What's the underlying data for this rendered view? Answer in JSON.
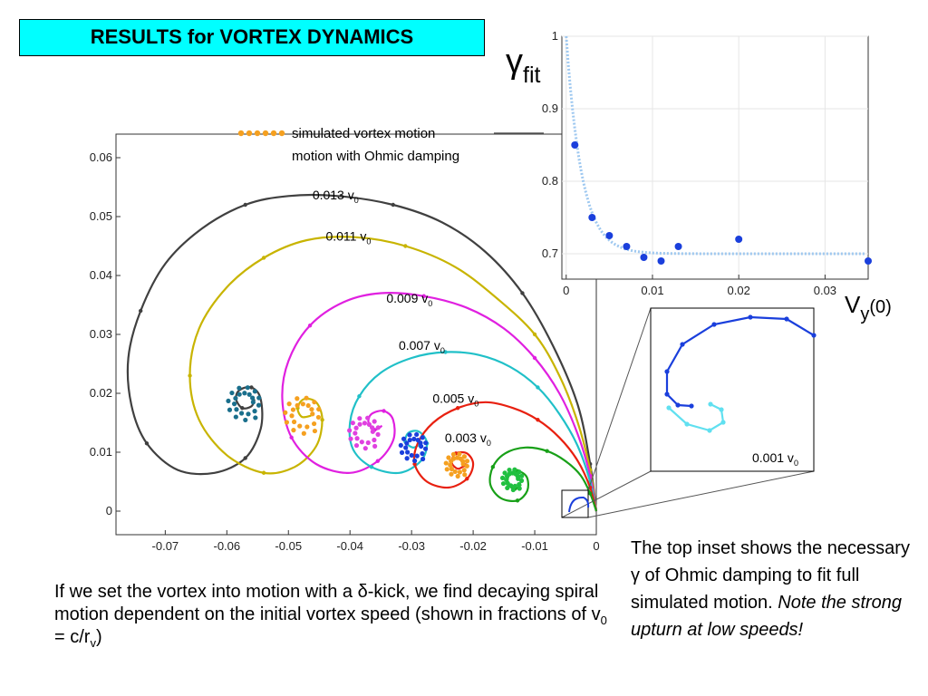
{
  "slide": {
    "title": "RESULTS for VORTEX DYNAMICS",
    "left_text": {
      "part1": "If we set the vortex into motion with a  ",
      "delta": "δ",
      "part2": "-kick, we find decaying spiral motion dependent on the initial vortex speed (shown in fractions of v",
      "sub0": "0",
      "part3": " = c/r",
      "subv": "v",
      "part4": ")"
    },
    "right_text": {
      "part1": "The top inset shows the necessary ",
      "gamma": "γ",
      "part2": " of Ohmic damping to fit full simulated motion. ",
      "italic": "Note the strong upturn at low speeds!"
    }
  },
  "chart_data": [
    {
      "type": "line",
      "title": "",
      "legend": {
        "placement": "top",
        "entries": [
          "simulated vortex motion",
          "motion with Ohmic damping"
        ]
      },
      "xlabel": "",
      "ylabel": "",
      "xlim": [
        -0.078,
        0
      ],
      "ylim": [
        -0.004,
        0.064
      ],
      "x_ticks": [
        "-0.07",
        "-0.06",
        "-0.05",
        "-0.04",
        "-0.03",
        "-0.02",
        "-0.01",
        "0"
      ],
      "x_tick_values": [
        -0.07,
        -0.06,
        -0.05,
        -0.04,
        -0.03,
        -0.02,
        -0.01,
        0
      ],
      "y_ticks": [
        "0",
        "0.01",
        "0.02",
        "0.03",
        "0.04",
        "0.05",
        "0.06"
      ],
      "y_tick_values": [
        0,
        0.01,
        0.02,
        0.03,
        0.04,
        0.05,
        0.06
      ],
      "series": [
        {
          "name": "0.013 v0",
          "label": "0.013 v",
          "sub": "0",
          "color": "#404040",
          "points": [
            [
              0,
              0
            ],
            [
              -0.001,
              0.008
            ],
            [
              -0.003,
              0.018
            ],
            [
              -0.007,
              0.028
            ],
            [
              -0.012,
              0.037
            ],
            [
              -0.018,
              0.044
            ],
            [
              -0.025,
              0.049
            ],
            [
              -0.033,
              0.052
            ],
            [
              -0.042,
              0.0535
            ],
            [
              -0.05,
              0.0535
            ],
            [
              -0.057,
              0.052
            ],
            [
              -0.064,
              0.048
            ],
            [
              -0.07,
              0.042
            ],
            [
              -0.074,
              0.034
            ],
            [
              -0.076,
              0.026
            ],
            [
              -0.0755,
              0.018
            ],
            [
              -0.073,
              0.0115
            ],
            [
              -0.068,
              0.007
            ],
            [
              -0.062,
              0.0065
            ],
            [
              -0.057,
              0.009
            ],
            [
              -0.0545,
              0.014
            ],
            [
              -0.0545,
              0.019
            ],
            [
              -0.056,
              0.021
            ],
            [
              -0.058,
              0.0205
            ],
            [
              -0.0585,
              0.019
            ],
            [
              -0.0575,
              0.0175
            ],
            [
              -0.056,
              0.0178
            ],
            [
              -0.0555,
              0.019
            ]
          ]
        },
        {
          "name": "0.011 v0",
          "label": "0.011 v",
          "sub": "0",
          "color": "#c8b400",
          "points": [
            [
              0,
              0
            ],
            [
              -0.001,
              0.007
            ],
            [
              -0.003,
              0.015
            ],
            [
              -0.006,
              0.023
            ],
            [
              -0.01,
              0.03
            ],
            [
              -0.016,
              0.036
            ],
            [
              -0.023,
              0.0415
            ],
            [
              -0.031,
              0.045
            ],
            [
              -0.039,
              0.0465
            ],
            [
              -0.047,
              0.046
            ],
            [
              -0.054,
              0.043
            ],
            [
              -0.06,
              0.038
            ],
            [
              -0.0645,
              0.031
            ],
            [
              -0.066,
              0.023
            ],
            [
              -0.0645,
              0.0155
            ],
            [
              -0.06,
              0.0095
            ],
            [
              -0.054,
              0.0065
            ],
            [
              -0.049,
              0.0075
            ],
            [
              -0.0455,
              0.011
            ],
            [
              -0.0445,
              0.0155
            ],
            [
              -0.0455,
              0.0185
            ],
            [
              -0.0475,
              0.019
            ],
            [
              -0.0485,
              0.0175
            ],
            [
              -0.0478,
              0.016
            ],
            [
              -0.0463,
              0.0162
            ]
          ]
        },
        {
          "name": "0.009 v0",
          "label": "0.009 v",
          "sub": "0",
          "color": "#e020e0",
          "points": [
            [
              0,
              0
            ],
            [
              -0.001,
              0.006
            ],
            [
              -0.003,
              0.013
            ],
            [
              -0.006,
              0.02
            ],
            [
              -0.01,
              0.026
            ],
            [
              -0.015,
              0.031
            ],
            [
              -0.021,
              0.0345
            ],
            [
              -0.028,
              0.0365
            ],
            [
              -0.035,
              0.037
            ],
            [
              -0.041,
              0.0355
            ],
            [
              -0.0465,
              0.0315
            ],
            [
              -0.05,
              0.0255
            ],
            [
              -0.051,
              0.019
            ],
            [
              -0.0495,
              0.0125
            ],
            [
              -0.0455,
              0.008
            ],
            [
              -0.04,
              0.0065
            ],
            [
              -0.0355,
              0.0085
            ],
            [
              -0.033,
              0.012
            ],
            [
              -0.033,
              0.0155
            ],
            [
              -0.0345,
              0.017
            ],
            [
              -0.0365,
              0.0165
            ],
            [
              -0.037,
              0.015
            ],
            [
              -0.036,
              0.0138
            ],
            [
              -0.0348,
              0.0145
            ]
          ]
        },
        {
          "name": "0.007 v0",
          "label": "0.007 v",
          "sub": "0",
          "color": "#20c0c8",
          "points": [
            [
              0,
              0
            ],
            [
              -0.001,
              0.005
            ],
            [
              -0.003,
              0.011
            ],
            [
              -0.006,
              0.0165
            ],
            [
              -0.0095,
              0.021
            ],
            [
              -0.014,
              0.0245
            ],
            [
              -0.019,
              0.0265
            ],
            [
              -0.0245,
              0.027
            ],
            [
              -0.03,
              0.026
            ],
            [
              -0.035,
              0.0235
            ],
            [
              -0.0385,
              0.0195
            ],
            [
              -0.04,
              0.015
            ],
            [
              -0.0395,
              0.0105
            ],
            [
              -0.0365,
              0.0075
            ],
            [
              -0.032,
              0.0065
            ],
            [
              -0.0285,
              0.0085
            ],
            [
              -0.0275,
              0.0115
            ],
            [
              -0.0288,
              0.0135
            ],
            [
              -0.0305,
              0.0133
            ],
            [
              -0.031,
              0.0118
            ],
            [
              -0.0298,
              0.0108
            ],
            [
              -0.0287,
              0.0113
            ]
          ]
        },
        {
          "name": "0.005 v0",
          "label": "0.005 v",
          "sub": "0",
          "color": "#e82010",
          "points": [
            [
              0,
              0
            ],
            [
              -0.001,
              0.004
            ],
            [
              -0.003,
              0.0085
            ],
            [
              -0.006,
              0.0125
            ],
            [
              -0.0095,
              0.0155
            ],
            [
              -0.0135,
              0.0175
            ],
            [
              -0.018,
              0.0185
            ],
            [
              -0.0225,
              0.0175
            ],
            [
              -0.0265,
              0.015
            ],
            [
              -0.029,
              0.0115
            ],
            [
              -0.0295,
              0.008
            ],
            [
              -0.0275,
              0.005
            ],
            [
              -0.024,
              0.004
            ],
            [
              -0.021,
              0.0055
            ],
            [
              -0.02,
              0.008
            ],
            [
              -0.021,
              0.0098
            ],
            [
              -0.0228,
              0.0098
            ],
            [
              -0.0235,
              0.0083
            ],
            [
              -0.0225,
              0.0072
            ],
            [
              -0.0213,
              0.0078
            ]
          ]
        },
        {
          "name": "0.003 v0",
          "label": "0.003 v",
          "sub": "0",
          "color": "#18a018",
          "points": [
            [
              0,
              0
            ],
            [
              -0.001,
              0.003
            ],
            [
              -0.0025,
              0.006
            ],
            [
              -0.005,
              0.0085
            ],
            [
              -0.008,
              0.0102
            ],
            [
              -0.0115,
              0.0108
            ],
            [
              -0.0148,
              0.0098
            ],
            [
              -0.0168,
              0.0075
            ],
            [
              -0.0172,
              0.0045
            ],
            [
              -0.0155,
              0.0022
            ],
            [
              -0.0128,
              0.0018
            ],
            [
              -0.0112,
              0.0035
            ],
            [
              -0.0113,
              0.0058
            ],
            [
              -0.0128,
              0.0068
            ],
            [
              -0.0142,
              0.006
            ],
            [
              -0.0143,
              0.0045
            ],
            [
              -0.0132,
              0.0038
            ],
            [
              -0.0122,
              0.0045
            ]
          ]
        }
      ],
      "spiral_dots": [
        {
          "color": "#1a6f8c",
          "center": [
            -0.057,
            0.0185
          ],
          "r": 0.0032
        },
        {
          "color": "#f5a020",
          "center": [
            -0.0475,
            0.0165
          ],
          "r": 0.0035
        },
        {
          "color": "#e040e0",
          "center": [
            -0.0375,
            0.0135
          ],
          "r": 0.003
        },
        {
          "color": "#1a3fdc",
          "center": [
            -0.0295,
            0.011
          ],
          "r": 0.0026
        },
        {
          "color": "#f5a020",
          "center": [
            -0.0225,
            0.008
          ],
          "r": 0.0022
        },
        {
          "color": "#20c040",
          "center": [
            -0.0135,
            0.0055
          ],
          "r": 0.002
        }
      ]
    },
    {
      "type": "scatter",
      "title": "",
      "xlabel": "V",
      "xlabel_sub": "y",
      "xlabel_suffix": "(0)",
      "ylabel": "γ",
      "ylabel_sub": "fit",
      "xlim": [
        -0.0005,
        0.035
      ],
      "ylim": [
        0.665,
        1.0
      ],
      "x_ticks": [
        "0",
        "0.01",
        "0.02",
        "0.03"
      ],
      "x_tick_values": [
        0,
        0.01,
        0.02,
        0.03
      ],
      "y_ticks": [
        "0.7",
        "0.8",
        "0.9",
        "1"
      ],
      "y_tick_values": [
        0.7,
        0.8,
        0.9,
        1.0
      ],
      "series": [
        {
          "name": "",
          "color": "#1a3fdc",
          "x": [
            0.001,
            0.003,
            0.005,
            0.007,
            0.009,
            0.011,
            0.013,
            0.02,
            0.035
          ],
          "y": [
            0.85,
            0.75,
            0.725,
            0.71,
            0.695,
            0.69,
            0.71,
            0.72,
            0.69
          ]
        }
      ],
      "fit_curve": {
        "color": "#9ec8f0",
        "asymptote": 0.7,
        "amplitude": 0.3,
        "decay": 0.0018
      }
    },
    {
      "type": "line",
      "title": "",
      "annotation": "0.001 v",
      "annotation_sub": "0",
      "series": [
        {
          "name": "",
          "color": "#1a3fdc",
          "points": [
            [
              180,
              30
            ],
            [
              150,
              12
            ],
            [
              110,
              10
            ],
            [
              70,
              18
            ],
            [
              35,
              40
            ],
            [
              18,
              70
            ],
            [
              18,
              95
            ],
            [
              30,
              107
            ],
            [
              45,
              108
            ]
          ]
        },
        {
          "name": "",
          "color": "#60e0f0",
          "points": [
            [
              20,
              110
            ],
            [
              40,
              128
            ],
            [
              65,
              135
            ],
            [
              80,
              126
            ],
            [
              78,
              112
            ],
            [
              66,
              106
            ]
          ]
        }
      ]
    }
  ]
}
